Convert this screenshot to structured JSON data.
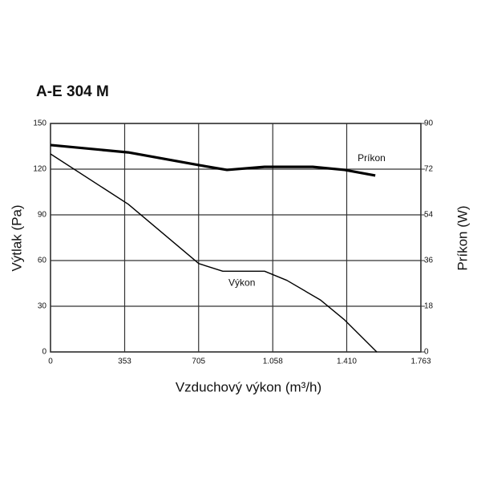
{
  "chart_data": {
    "type": "line",
    "title": "A-E 304 M",
    "x_label": "Vzduchový výkon (m³/h)",
    "y_label": "Výtlak (Pa)",
    "y2_label": "Príkon (W)",
    "xlim": [
      0,
      1763
    ],
    "xticks": [
      0,
      353,
      705,
      {
        "value": 1058,
        "label": "1.058"
      },
      {
        "value": 1410,
        "label": "1.410"
      },
      {
        "value": 1763,
        "label": "1.763"
      }
    ],
    "ylim": [
      0,
      150
    ],
    "yticks": [
      0,
      30,
      60,
      90,
      120,
      150
    ],
    "y2lim": [
      0,
      90
    ],
    "y2ticks": [
      0,
      18,
      36,
      54,
      72,
      90
    ],
    "grid": true,
    "series": [
      {
        "name": "Výkon",
        "color": "#000000",
        "x": [
          0,
          370,
          706,
          820,
          1019,
          1125,
          1286,
          1400,
          1553
        ],
        "values": [
          130,
          97,
          58,
          53,
          53,
          47,
          34,
          21,
          0
        ]
      },
      {
        "name": "Príkon",
        "color": "#000000",
        "axis": "y2",
        "x": [
          0,
          370,
          706,
          840,
          1019,
          1248,
          1400,
          1546
        ],
        "values": [
          81.5,
          78.6,
          73.6,
          71.7,
          72.9,
          72.9,
          71.7,
          69.5
        ]
      }
    ]
  }
}
